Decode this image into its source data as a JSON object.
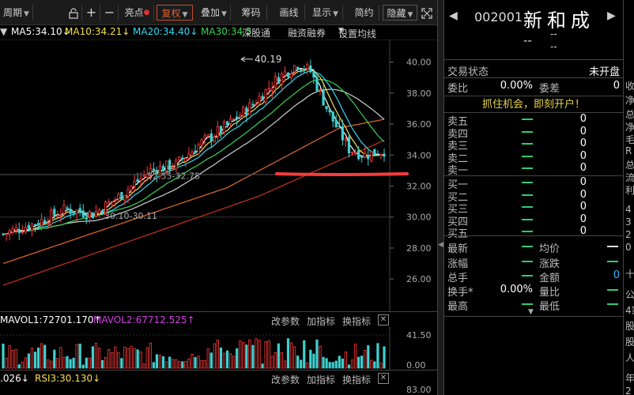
{
  "toolbar": {
    "period_label": "周期",
    "highlight_label": "亮点",
    "adjust_label": "复权",
    "overlay_label": "叠加",
    "chips_label": "筹码",
    "draw_label": "画线",
    "display_label": "显示",
    "simple_label": "简约",
    "hide_label": "隐藏"
  },
  "ma_legend": {
    "ma5": "MA5:34.10↓",
    "ma10": "MA10:34.21↓",
    "ma20": "MA20:34.40↓",
    "ma30": "MA30:34.5",
    "shenzhen": "深股通",
    "margin": "融资融券",
    "settings": "设置均线"
  },
  "price_axis": [
    "40.00",
    "38.00",
    "36.00",
    "34.00",
    "32.00",
    "30.00",
    "28.00",
    "26.00"
  ],
  "price_annotations": {
    "high": "40.19",
    "range_upper": "32.55-32.78",
    "range_lower": "30.10-30.11"
  },
  "vol_legend": {
    "vol": "MAVOL1:72701.170↑",
    "mavol2": "MAVOL2:67712.525↑",
    "change_param": "改参数",
    "add_indicator": "加指标",
    "switch_indicator": "换指标"
  },
  "vol_axis": [
    "41.50",
    "0.00"
  ],
  "rsi_legend": {
    "rsi0": ".026↓",
    "rsi3": "RSI3:30.130↓",
    "change_param": "改参数",
    "add_indicator": "加指标",
    "switch_indicator": "换指标"
  },
  "rsi_axis": [
    "83.00"
  ],
  "stock": {
    "code": "002001",
    "name": "新和成",
    "dash": "--"
  },
  "quote": {
    "status_label": "交易状态",
    "status_value": "未开盘",
    "weibi_label": "委比",
    "weibi_value": "0.00%",
    "weicha_label": "委差",
    "weicha_value": "0",
    "promo": "抓住机会，即刻开户！"
  },
  "order_book": {
    "sell": [
      {
        "label": "卖五",
        "vol": "0"
      },
      {
        "label": "卖四",
        "vol": "0"
      },
      {
        "label": "卖三",
        "vol": "0"
      },
      {
        "label": "卖二",
        "vol": "0"
      },
      {
        "label": "卖一",
        "vol": "0"
      }
    ],
    "buy": [
      {
        "label": "买一",
        "vol": "0"
      },
      {
        "label": "买二",
        "vol": "0"
      },
      {
        "label": "买三",
        "vol": "0"
      },
      {
        "label": "买四",
        "vol": "0"
      },
      {
        "label": "买五",
        "vol": "0"
      }
    ]
  },
  "stats": {
    "latest_label": "最新",
    "avg_label": "均价",
    "change_pct_label": "涨幅",
    "change_label": "涨跌",
    "total_label": "总手",
    "amount_label": "金额",
    "amount_value": "0",
    "turnover_label": "换手*",
    "turnover_value": "0.00%",
    "vol_ratio_label": "量比",
    "high_label": "最高",
    "low_label": "最低"
  },
  "edge_column": [
    "收",
    "净",
    "总",
    "净",
    "毛",
    "R",
    "总",
    "流",
    "利",
    "4",
    "3",
    "2",
    "0",
    "十",
    "公",
    "4家",
    "股",
    "股",
    "人",
    "年",
    "2"
  ],
  "colors": {
    "up": "#ff3b3b",
    "down": "#2ecc71",
    "ma5": "#ffffff",
    "ma10": "#f4e04d",
    "ma20": "#34d7f0",
    "ma30": "#39d353",
    "ma60": "#d0d0d0",
    "ma120": "#e06a30",
    "promo": "#e8d64a"
  }
}
